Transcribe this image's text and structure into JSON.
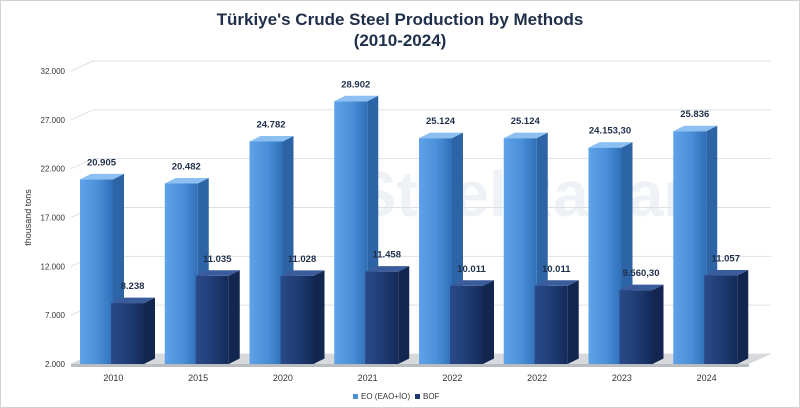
{
  "chart_data": {
    "type": "bar",
    "title": "Türkiye's Crude Steel Production by Methods",
    "subtitle": "(2010-2024)",
    "ylabel": "thousand tons",
    "xlabel": "",
    "ylim": [
      2000,
      32000
    ],
    "yticks": [
      2000,
      7000,
      12000,
      17000,
      22000,
      27000,
      32000
    ],
    "ytick_labels": [
      "2.000",
      "7.000",
      "12.000",
      "17.000",
      "22.000",
      "27.000",
      "32.000"
    ],
    "categories": [
      "2010",
      "2015",
      "2020",
      "2021",
      "2022",
      "2022",
      "2023",
      "2024"
    ],
    "series": [
      {
        "name": "EO (EAO+İO)",
        "color": "#4a8fd8",
        "values": [
          20905,
          20482,
          24782,
          28902,
          25124,
          25124,
          24153.3,
          25836
        ],
        "labels": [
          "20.905",
          "20.482",
          "24.782",
          "28.902",
          "25.124",
          "25.124",
          "24.153,30",
          "25.836"
        ]
      },
      {
        "name": "BOF",
        "color": "#1f3b73",
        "values": [
          8238,
          11035,
          11028,
          11458,
          10011,
          10011,
          9560.3,
          11057
        ],
        "labels": [
          "8.238",
          "11.035",
          "11.028",
          "11.458",
          "10.011",
          "10.011",
          "9.560,30",
          "11.057"
        ]
      }
    ],
    "grid": true,
    "legend": "bottom",
    "watermark": "SteelRadar"
  }
}
